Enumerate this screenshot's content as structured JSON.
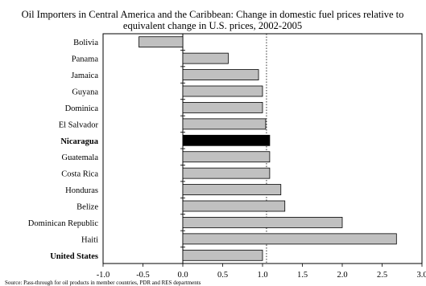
{
  "chart_data": {
    "type": "bar",
    "orientation": "horizontal",
    "title": "Oil Importers in Central America and the Caribbean: Change in domestic fuel prices relative to equivalent change in U.S. prices, 2002-2005",
    "title_lines": [
      "Oil Importers in Central America and the Caribbean: Change in domestic fuel prices relative to",
      "equivalent change in U.S. prices, 2002-2005"
    ],
    "source": "Source: Pass-through for oil products in member countries, PDR and RES  departments",
    "categories": [
      "Bolivia",
      "Panama",
      "Jamaica",
      "Guyana",
      "Dominica",
      "El Salvador",
      "Nicaragua",
      "Guatemala",
      "Costa Rica",
      "Honduras",
      "Belize",
      "Dominican Republic",
      "Haiti",
      "United States"
    ],
    "values": [
      -0.55,
      0.57,
      0.95,
      1.0,
      1.0,
      1.04,
      1.09,
      1.09,
      1.09,
      1.23,
      1.28,
      2.0,
      2.68,
      1.0
    ],
    "highlighted": [
      "Nicaragua"
    ],
    "bold_labels": [
      "Nicaragua",
      "United States"
    ],
    "xlim": [
      -1.0,
      3.0
    ],
    "xticks": [
      "-1.0",
      "-0.5",
      "0.0",
      "0.5",
      "1.0",
      "1.5",
      "2.0",
      "2.5",
      "3.0"
    ],
    "reference_line": 1.05,
    "xlabel": "",
    "ylabel": "",
    "grid": false,
    "colors": {
      "bar": "#c0c0c0",
      "highlight": "#000000",
      "edge": "#000000"
    }
  }
}
